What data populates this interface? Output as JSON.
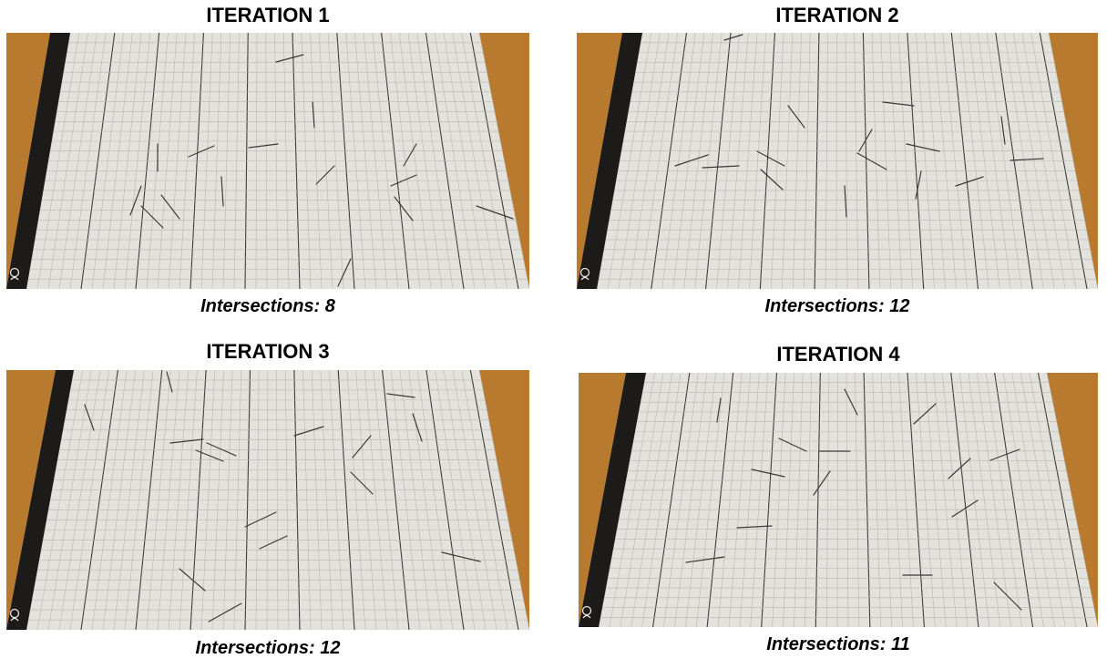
{
  "panels": [
    {
      "title": "ITERATION 1",
      "caption": "Intersections: 8"
    },
    {
      "title": "ITERATION 2",
      "caption": "Intersections: 12"
    },
    {
      "title": "ITERATION 3",
      "caption": "Intersections: 12"
    },
    {
      "title": "ITERATION 4",
      "caption": "Intersections: 11"
    }
  ],
  "colors": {
    "table_wood": "#b87a2e",
    "paper": "#e4e2dc",
    "grid_minor": "#b9b7b2",
    "grid_major": "#3c3c3c",
    "binding_strip": "#1d1b19",
    "needle": "#3a3a3a"
  }
}
